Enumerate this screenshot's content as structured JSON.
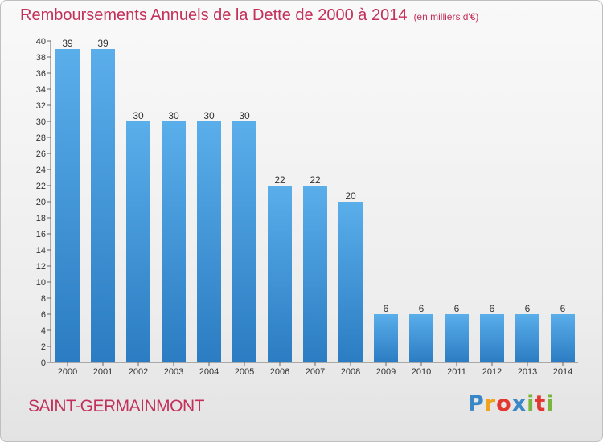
{
  "title": "Remboursements Annuels de la Dette de 2000 à 2014",
  "unit_note": "(en milliers d'€)",
  "footer": {
    "commune": "SAINT-GERMAINMONT"
  },
  "logo": {
    "letters": [
      "P",
      "r",
      "o",
      "x",
      "i",
      "t",
      "i"
    ],
    "colors": [
      "#3a87c8",
      "#f0a21c",
      "#e2362f",
      "#3a87c8",
      "#7ab53d",
      "#e2362f",
      "#7ab53d"
    ]
  },
  "colors": {
    "bar": "#4a9fe0",
    "bar_dark": "#2b7cc2",
    "title": "#c3305a"
  },
  "chart_data": {
    "type": "bar",
    "title": "Remboursements Annuels de la Dette de 2000 à 2014",
    "categories": [
      "2000",
      "2001",
      "2002",
      "2003",
      "2004",
      "2005",
      "2006",
      "2007",
      "2008",
      "2009",
      "2010",
      "2011",
      "2012",
      "2013",
      "2014"
    ],
    "values": [
      39,
      39,
      30,
      30,
      30,
      30,
      22,
      22,
      20,
      6,
      6,
      6,
      6,
      6,
      6
    ],
    "ylim": [
      0,
      40
    ],
    "y_ticks": [
      0,
      2,
      4,
      6,
      8,
      10,
      12,
      14,
      16,
      18,
      20,
      22,
      24,
      26,
      28,
      30,
      32,
      34,
      36,
      38,
      40
    ],
    "grid": false,
    "legend": "none"
  }
}
